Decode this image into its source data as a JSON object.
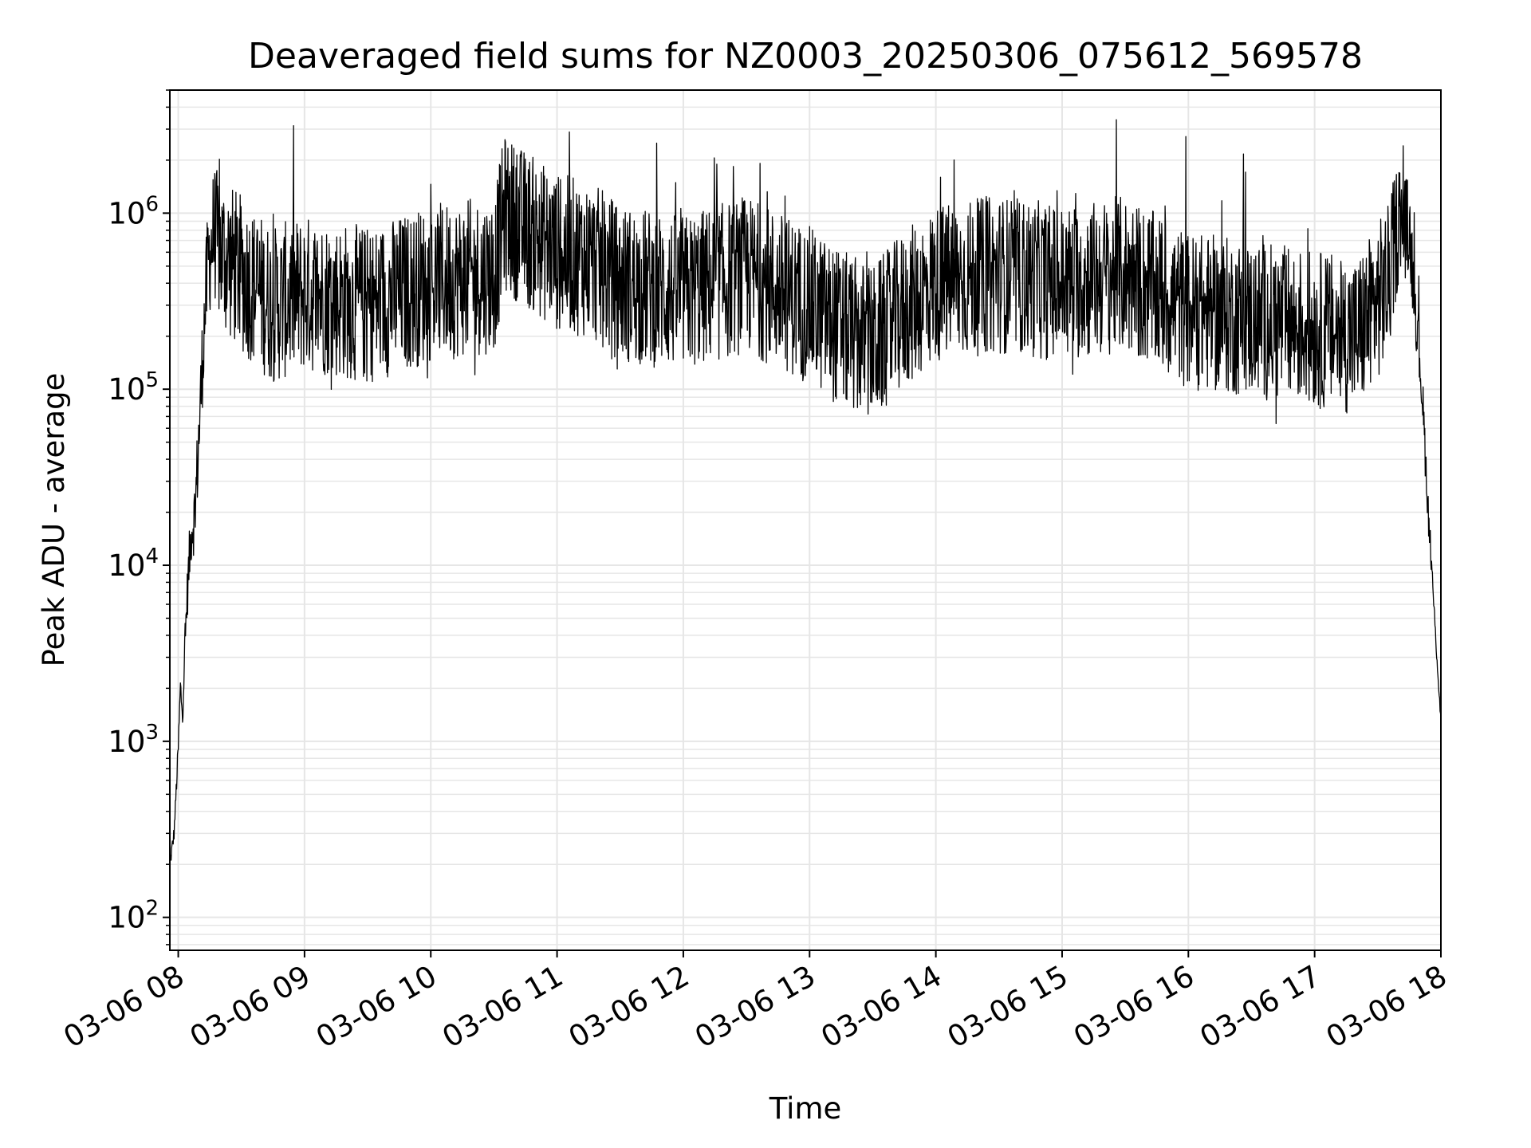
{
  "chart_data": {
    "type": "line",
    "title": "Deaveraged field sums for NZ0003_20250306_075612_569578",
    "xlabel": "Time",
    "ylabel": "Peak ADU - average",
    "yscale": "log",
    "xlim": [
      "03-06 07:56",
      "03-06 18:00"
    ],
    "ylim": [
      65,
      5000000
    ],
    "grid": true,
    "line_color": "#000000",
    "grid_color": "#e6e6e6",
    "x_ticks": [
      {
        "value": "03-06 08:00",
        "label": "03-06 08"
      },
      {
        "value": "03-06 09:00",
        "label": "03-06 09"
      },
      {
        "value": "03-06 10:00",
        "label": "03-06 10"
      },
      {
        "value": "03-06 11:00",
        "label": "03-06 11"
      },
      {
        "value": "03-06 12:00",
        "label": "03-06 12"
      },
      {
        "value": "03-06 13:00",
        "label": "03-06 13"
      },
      {
        "value": "03-06 14:00",
        "label": "03-06 14"
      },
      {
        "value": "03-06 15:00",
        "label": "03-06 15"
      },
      {
        "value": "03-06 16:00",
        "label": "03-06 16"
      },
      {
        "value": "03-06 17:00",
        "label": "03-06 17"
      },
      {
        "value": "03-06 18:00",
        "label": "03-06 18"
      }
    ],
    "y_ticks": [
      {
        "value": 100,
        "base": "10",
        "exp": "2"
      },
      {
        "value": 1000,
        "base": "10",
        "exp": "3"
      },
      {
        "value": 10000,
        "base": "10",
        "exp": "4"
      },
      {
        "value": 100000,
        "base": "10",
        "exp": "5"
      },
      {
        "value": 1000000,
        "base": "10",
        "exp": "6"
      }
    ],
    "series": [
      {
        "x": [
          "03-06 07:56",
          "03-06 07:58",
          "03-06 08:00",
          "03-06 08:01",
          "03-06 08:02",
          "03-06 08:04",
          "03-06 08:06",
          "03-06 08:08",
          "03-06 08:10",
          "03-06 08:12",
          "03-06 08:14",
          "03-06 08:17",
          "03-06 08:20",
          "03-06 08:30",
          "03-06 08:45",
          "03-06 09:00",
          "03-06 09:30",
          "03-06 10:00",
          "03-06 10:30",
          "03-06 10:35",
          "03-06 11:00",
          "03-06 11:15",
          "03-06 11:30",
          "03-06 12:00",
          "03-06 12:30",
          "03-06 13:00",
          "03-06 13:15",
          "03-06 13:30",
          "03-06 13:45",
          "03-06 14:00",
          "03-06 14:30",
          "03-06 15:00",
          "03-06 15:30",
          "03-06 16:00",
          "03-06 16:30",
          "03-06 17:00",
          "03-06 17:20",
          "03-06 17:35",
          "03-06 17:40",
          "03-06 17:45",
          "03-06 17:48",
          "03-06 17:51",
          "03-06 17:54",
          "03-06 17:57",
          "03-06 18:00"
        ],
        "y": [
          200,
          300,
          900,
          2000,
          1500,
          6000,
          15000,
          20000,
          60000,
          200000,
          500000,
          800000,
          600000,
          450000,
          300000,
          350000,
          300000,
          400000,
          450000,
          1000000,
          600000,
          550000,
          400000,
          350000,
          450000,
          300000,
          220000,
          180000,
          280000,
          400000,
          450000,
          400000,
          450000,
          280000,
          250000,
          220000,
          200000,
          400000,
          950000,
          800000,
          300000,
          100000,
          20000,
          5000,
          1300
        ],
        "noise_band_decades": 0.45
      }
    ]
  }
}
